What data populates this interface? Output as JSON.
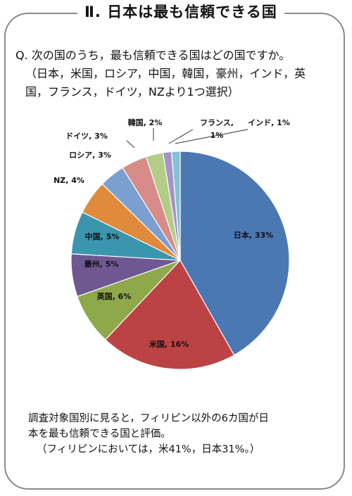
{
  "title": "Ⅱ.  日本は最も信頼できる国",
  "question": {
    "line1": "Q. 次の国のうち，最も信頼できる国はどの国ですか。",
    "line2": "（日本，米国，ロシア，中国，韓国，豪州，インド，英",
    "line3": "国，フランス，ドイツ，NZより1つ選択）"
  },
  "chart_data": {
    "type": "pie",
    "start": "12 o'clock",
    "direction": "clockwise",
    "slices": [
      {
        "label": "日本",
        "value": 33,
        "display": "日本, 33%",
        "color": "#4b78b3"
      },
      {
        "label": "米国",
        "value": 16,
        "display": "米国, 16%",
        "color": "#bb4344"
      },
      {
        "label": "英国",
        "value": 6,
        "display": "英国, 6%",
        "color": "#8ea84a"
      },
      {
        "label": "豪州",
        "value": 5,
        "display": "豪州, 5%",
        "color": "#6f5891"
      },
      {
        "label": "中国",
        "value": 5,
        "display": "中国, 5%",
        "color": "#3b95ad"
      },
      {
        "label": "NZ",
        "value": 4,
        "display": "NZ, 4%",
        "color": "#e08a3c"
      },
      {
        "label": "ロシア",
        "value": 3,
        "display": "ロシア, 3%",
        "color": "#7b9fd1"
      },
      {
        "label": "ドイツ",
        "value": 3,
        "display": "ドイツ, 3%",
        "color": "#d88c8a"
      },
      {
        "label": "韓国",
        "value": 2,
        "display": "韓国, 2%",
        "color": "#b3cd88"
      },
      {
        "label": "フランス",
        "value": 1,
        "display": "フランス, 1%",
        "color": "#a694c4"
      },
      {
        "label": "インド",
        "value": 1,
        "display": "インド, 1%",
        "color": "#82c3d6"
      }
    ]
  },
  "note": {
    "line1": "調査対象国別に見ると，フィリピン以外の6カ国が日",
    "line2": "本を最も信頼できる国と評価。",
    "line3": "（フィリピンにおいては，米41%，日本31%。）"
  }
}
